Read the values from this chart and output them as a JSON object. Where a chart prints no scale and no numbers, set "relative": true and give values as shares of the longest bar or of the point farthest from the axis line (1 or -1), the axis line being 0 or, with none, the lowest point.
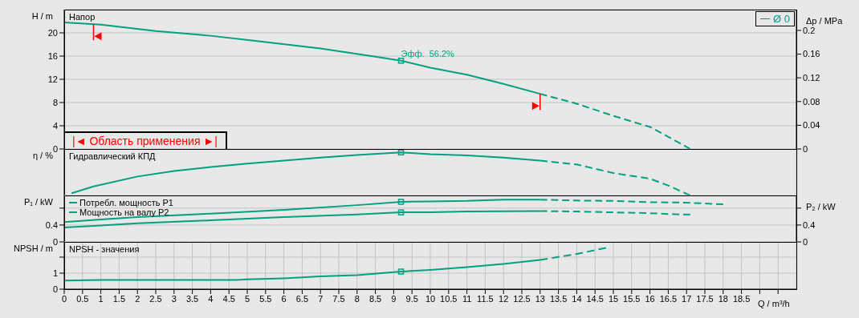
{
  "chart_data": [
    {
      "type": "line",
      "title": "Напор",
      "ylabel": "H / m",
      "y2label": "Δp / MPa",
      "xlim": [
        0,
        20
      ],
      "xticks": [
        0,
        0.5,
        1,
        1.5,
        2,
        2.5,
        3,
        3.5,
        4,
        4.5,
        5,
        5.5,
        6,
        6.5,
        7,
        7.5,
        8,
        8.5,
        9,
        9.5,
        10,
        10.5,
        11,
        11.5,
        12,
        12.5,
        13,
        13.5,
        14,
        14.5,
        15,
        15.5,
        16,
        16.5,
        17,
        17.5,
        18,
        18.5
      ],
      "ylim": [
        0,
        24
      ],
      "yticks": [
        0,
        4,
        8,
        12,
        16,
        20
      ],
      "y2lim": [
        0,
        0.235
      ],
      "y2ticks": [
        0,
        0.04,
        0.08,
        0.12,
        0.16,
        0.2
      ],
      "grid": true,
      "tick_labels": "y",
      "legend": "top right",
      "series": [
        {
          "name": "Ø 0",
          "color": "#00a080",
          "x": [
            0,
            1,
            2.5,
            4,
            5.5,
            7,
            8.5,
            9.2,
            10,
            11,
            12,
            13
          ],
          "values": [
            21.8,
            21.4,
            20.3,
            19.5,
            18.4,
            17.3,
            15.9,
            15.2,
            14.0,
            12.8,
            11.2,
            9.5
          ]
        },
        {
          "color": "#00a080",
          "line_style": "dashed",
          "x": [
            13,
            14,
            15,
            16,
            16.5,
            17.1
          ],
          "values": [
            9.5,
            7.8,
            5.7,
            3.8,
            2.1,
            0
          ]
        },
        {
          "type": "scatter",
          "marker": "square",
          "color": "#00a080",
          "x": [
            9.2
          ],
          "values": [
            15.2
          ]
        }
      ],
      "annotations": [
        {
          "text": "Эфф.  56.2%",
          "x": 9.2,
          "y": 15.2
        },
        "|◄ Область применения ►|"
      ],
      "ref_lines": [
        {
          "axis": "x",
          "value": 0.8,
          "color": "#ff0000"
        },
        {
          "axis": "x",
          "value": 13,
          "color": "#ff0000"
        }
      ]
    },
    {
      "type": "line",
      "title": "Гидравлический КПД",
      "ylabel": "η / %",
      "relative": true,
      "xlim": [
        0,
        20
      ],
      "xticks": [
        0,
        0.5,
        1,
        1.5,
        2,
        2.5,
        3,
        3.5,
        4,
        4.5,
        5,
        5.5,
        6,
        6.5,
        7,
        7.5,
        8,
        8.5,
        9,
        9.5,
        10,
        10.5,
        11,
        11.5,
        12,
        12.5,
        13,
        13.5,
        14,
        14.5,
        15,
        15.5,
        16,
        16.5,
        17,
        17.5,
        18,
        18.5
      ],
      "grid": "x",
      "tick_labels": false,
      "series": [
        {
          "color": "#00a080",
          "x": [
            0.2,
            0.8,
            2,
            3,
            4,
            5,
            6,
            7,
            8,
            9.2,
            10,
            11,
            12,
            13
          ],
          "values": [
            0.05,
            0.21,
            0.44,
            0.57,
            0.66,
            0.74,
            0.81,
            0.88,
            0.94,
            1,
            0.96,
            0.93,
            0.88,
            0.81
          ]
        },
        {
          "color": "#00a080",
          "line_style": "dashed",
          "x": [
            13,
            14,
            15,
            16,
            16.5,
            17.1
          ],
          "values": [
            0.81,
            0.72,
            0.52,
            0.39,
            0.23,
            0
          ]
        },
        {
          "type": "scatter",
          "marker": "square",
          "color": "#00a080",
          "x": [
            9.2
          ],
          "values": [
            1
          ]
        }
      ]
    },
    {
      "type": "line",
      "ylabel": "P₁ / kW",
      "y2label": "P₂ / kW",
      "legend": "top left",
      "xlim": [
        0,
        20
      ],
      "xticks": [
        0,
        0.5,
        1,
        1.5,
        2,
        2.5,
        3,
        3.5,
        4,
        4.5,
        5,
        5.5,
        6,
        6.5,
        7,
        7.5,
        8,
        8.5,
        9,
        9.5,
        10,
        10.5,
        11,
        11.5,
        12,
        12.5,
        13,
        13.5,
        14,
        14.5,
        15,
        15.5,
        16,
        16.5,
        17,
        17.5,
        18,
        18.5
      ],
      "ylim": [
        0,
        1.1
      ],
      "yticks": [
        0,
        0.4,
        {
          "value": 0.8,
          "label": null
        }
      ],
      "y2lim": [
        0,
        1.1
      ],
      "y2ticks": [
        0,
        0.4,
        {
          "value": 0.8,
          "label": null
        }
      ],
      "grid": true,
      "tick_labels": "y",
      "series": [
        {
          "name": "Потребл. мощность P1",
          "color": "#00a080",
          "x": [
            0,
            1,
            2,
            4,
            6,
            8,
            9.2,
            10,
            11,
            12,
            13
          ],
          "values": [
            0.47,
            0.53,
            0.59,
            0.67,
            0.76,
            0.87,
            0.95,
            0.96,
            0.97,
            1.0,
            1.0
          ]
        },
        {
          "color": "#00a080",
          "line_style": "dashed",
          "x": [
            13,
            14,
            15,
            16,
            17,
            18
          ],
          "values": [
            1.0,
            0.98,
            0.97,
            0.94,
            0.93,
            0.89
          ]
        },
        {
          "name": "Мощность на валу P2",
          "color": "#00a080",
          "x": [
            0,
            1,
            2,
            4,
            6,
            8,
            9.2,
            10,
            11,
            13
          ],
          "values": [
            0.34,
            0.39,
            0.44,
            0.51,
            0.59,
            0.65,
            0.7,
            0.7,
            0.72,
            0.73
          ]
        },
        {
          "color": "#00a080",
          "line_style": "dashed",
          "x": [
            13,
            14,
            15,
            16,
            16.8,
            17.1
          ],
          "values": [
            0.73,
            0.72,
            0.7,
            0.68,
            0.65,
            0.65
          ]
        },
        {
          "type": "scatter",
          "marker": "square",
          "color": "#00a080",
          "x": [
            9.2,
            9.2
          ],
          "values": [
            0.95,
            0.7
          ]
        }
      ]
    },
    {
      "type": "line",
      "title": "NPSH - значения",
      "ylabel": "NPSH / m",
      "xlabel": "Q / m³/h",
      "xlim": [
        0,
        20
      ],
      "xticks": [
        0,
        0.5,
        1,
        1.5,
        2,
        2.5,
        3,
        3.5,
        4,
        4.5,
        5,
        5.5,
        6,
        6.5,
        7,
        7.5,
        8,
        8.5,
        9,
        9.5,
        10,
        10.5,
        11,
        11.5,
        12,
        12.5,
        13,
        13.5,
        14,
        14.5,
        15,
        15.5,
        16,
        16.5,
        17,
        17.5,
        18,
        18.5,
        {
          "value": 19,
          "label": null
        },
        {
          "value": 19.5,
          "label": null
        }
      ],
      "ylim": [
        0,
        2.95
      ],
      "yticks": [
        0,
        1,
        {
          "value": 2,
          "label": null
        }
      ],
      "grid": true,
      "series": [
        {
          "color": "#00a080",
          "x": [
            0,
            1,
            4.7,
            5,
            6,
            7,
            8,
            9.2,
            10,
            11,
            12,
            13
          ],
          "values": [
            0.54,
            0.58,
            0.58,
            0.61,
            0.68,
            0.8,
            0.87,
            1.1,
            1.2,
            1.37,
            1.58,
            1.82
          ]
        },
        {
          "color": "#00a080",
          "line_style": "dashed",
          "x": [
            13,
            14,
            14.8
          ],
          "values": [
            1.82,
            2.2,
            2.58
          ]
        },
        {
          "type": "scatter",
          "marker": "square",
          "color": "#00a080",
          "x": [
            9.2
          ],
          "values": [
            1.1
          ]
        }
      ]
    }
  ]
}
